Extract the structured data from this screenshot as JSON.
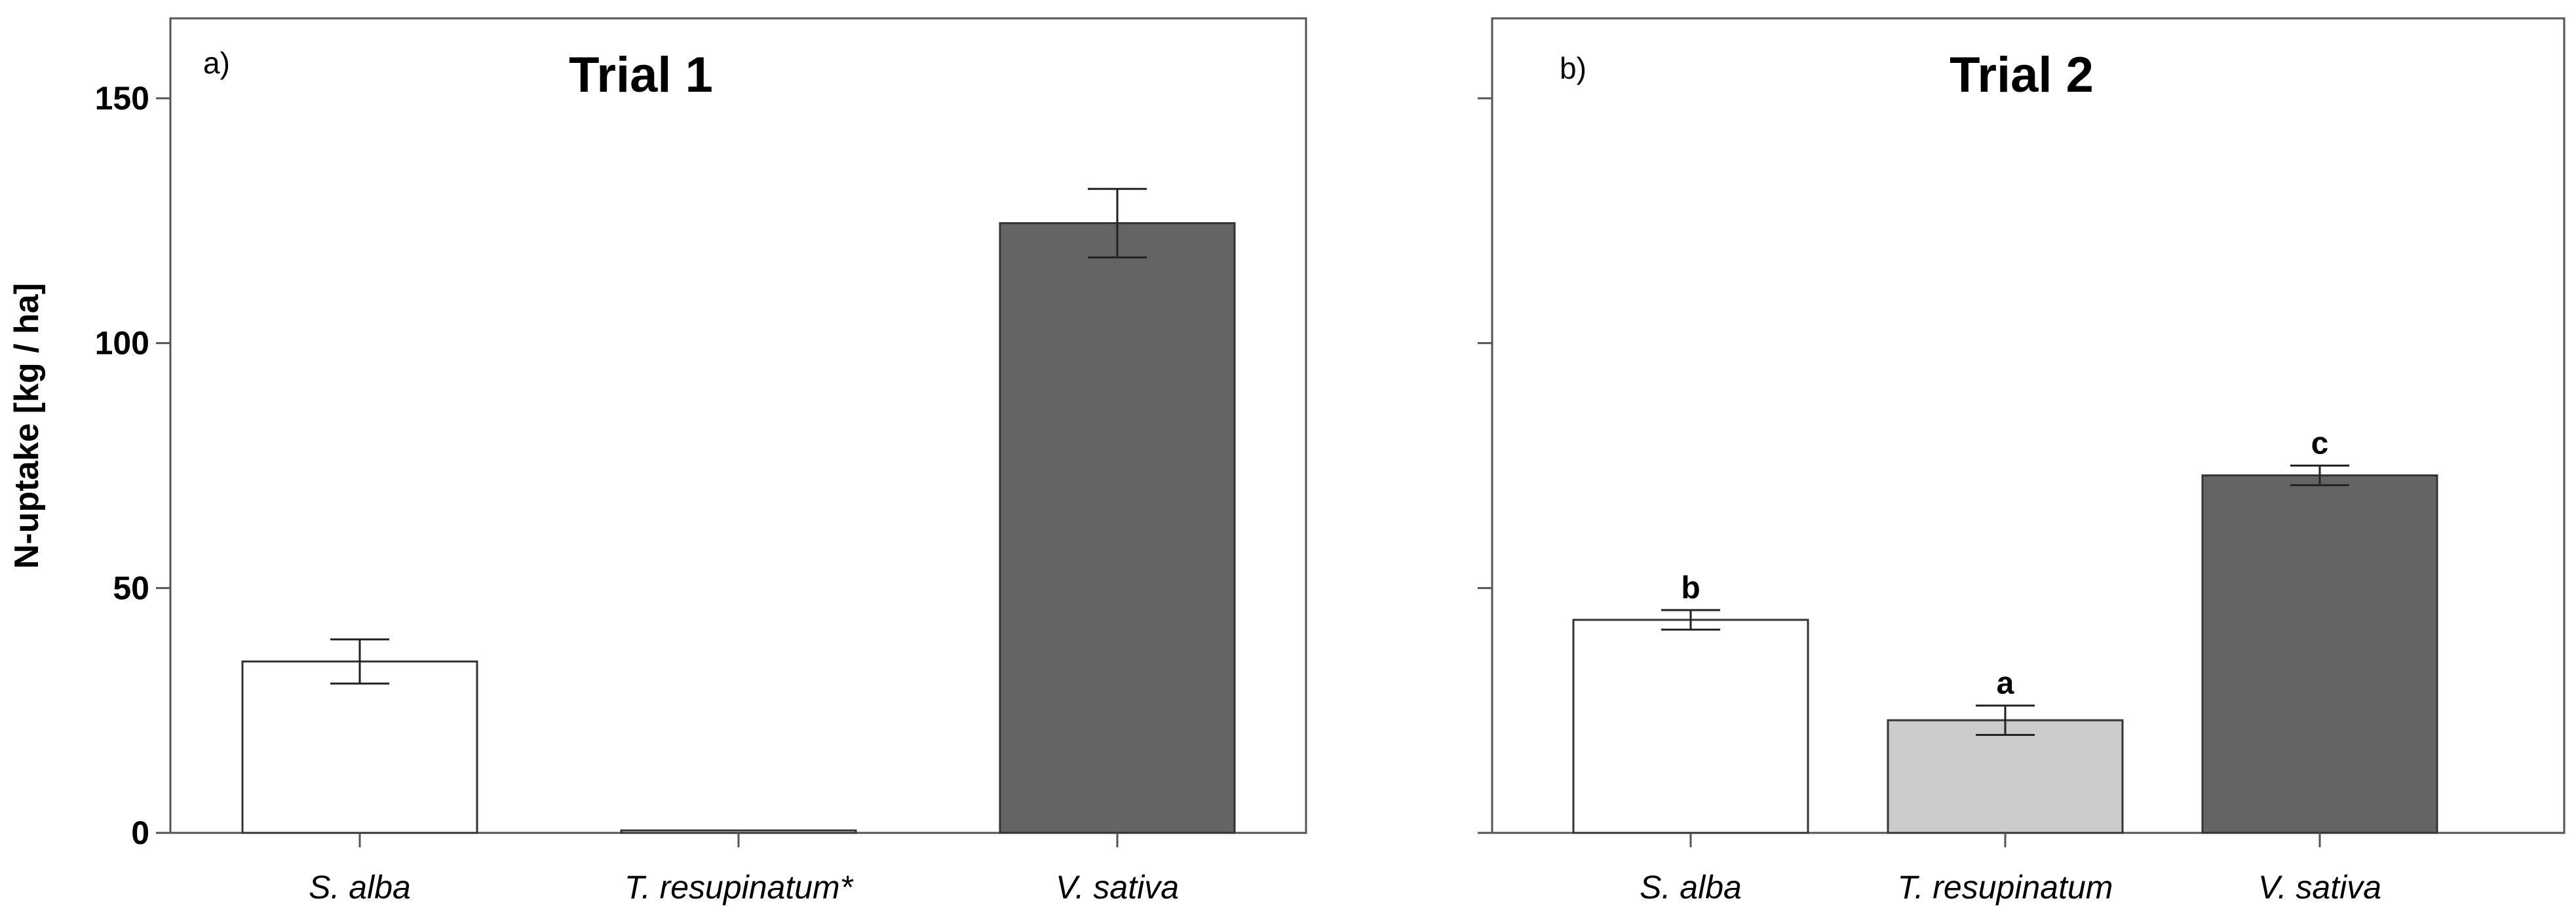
{
  "figure": {
    "ylabel": "N-uptake [kg / ha]"
  },
  "chart_data": [
    {
      "type": "bar",
      "panel_label": "a)",
      "title": "Trial 1",
      "ylabel": "N-uptake [kg / ha]",
      "ylim": [
        0,
        165
      ],
      "yticks": [
        "0",
        "50",
        "100",
        "150"
      ],
      "grid": false,
      "categories": [
        "S. alba",
        "T. resupinatum*",
        "V. sativa"
      ],
      "values": [
        35,
        0.5,
        124.5
      ],
      "error_low": [
        30.5,
        0.5,
        117.5
      ],
      "error_high": [
        39.5,
        0.5,
        131.5
      ],
      "colors": [
        "#ffffff",
        "#ffffff",
        "#646464"
      ],
      "significance_labels": [
        "",
        "",
        ""
      ]
    },
    {
      "type": "bar",
      "panel_label": "b)",
      "title": "Trial 2",
      "ylim": [
        0,
        165
      ],
      "yticks": [
        "",
        "",
        "",
        ""
      ],
      "grid": false,
      "categories": [
        "S. alba",
        "T. resupinatum",
        "V. sativa"
      ],
      "values": [
        43.5,
        23,
        73
      ],
      "error_low": [
        41.5,
        20,
        71
      ],
      "error_high": [
        45.5,
        26,
        75
      ],
      "colors": [
        "#ffffff",
        "#cccccc",
        "#646464"
      ],
      "significance_labels": [
        "b",
        "a",
        "c"
      ]
    }
  ]
}
